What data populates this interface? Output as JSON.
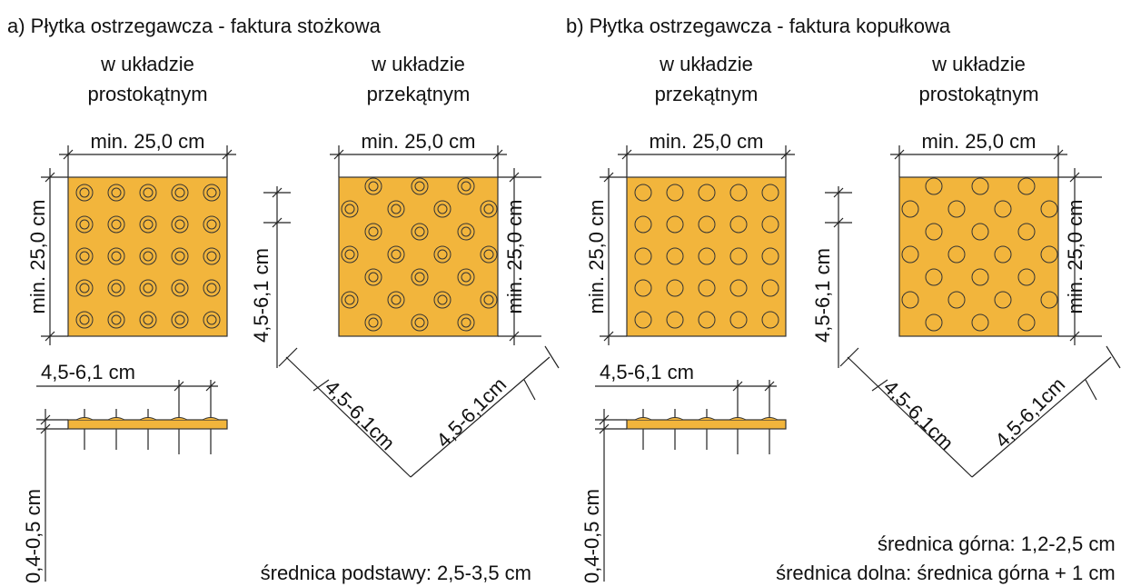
{
  "panels": [
    {
      "title": "a) Płytka ostrzegawcza - faktura stożkowa",
      "tiles": [
        {
          "caption": [
            "w układzie",
            "prostokątnym"
          ],
          "width": "min. 25,0 cm",
          "height": "min. 25,0 cm"
        },
        {
          "caption": [
            "w układzie",
            "przekątnym"
          ],
          "width": "min. 25,0 cm",
          "height": "min. 25,0 cm"
        }
      ],
      "spacing": "4,5-6,1 cm",
      "profile_height": "0,4-0,5 cm",
      "vertical_spacing": "4,5-6,1 cm",
      "diagonal_spacing": [
        "4,5-6,1cm",
        "4,5-6,1cm"
      ],
      "notes": [
        "średnica podstawy: 2,5-3,5 cm"
      ]
    },
    {
      "title": "b) Płytka ostrzegawcza - faktura kopułkowa",
      "tiles": [
        {
          "caption": [
            "w układzie",
            "przekątnym"
          ],
          "width": "min. 25,0 cm",
          "height": "min. 25,0 cm"
        },
        {
          "caption": [
            "w układzie",
            "prostokątnym"
          ],
          "width": "min. 25,0 cm",
          "height": "min. 25,0 cm"
        }
      ],
      "spacing": "4,5-6,1 cm",
      "profile_height": "0,4-0,5 cm",
      "vertical_spacing": "4,5-6,1 cm",
      "diagonal_spacing": [
        "4,5-6,1cm",
        "4,5-6,1cm"
      ],
      "notes": [
        "średnica górna: 1,2-2,5 cm",
        "średnica dolna: średnica górna + 1 cm"
      ]
    }
  ]
}
